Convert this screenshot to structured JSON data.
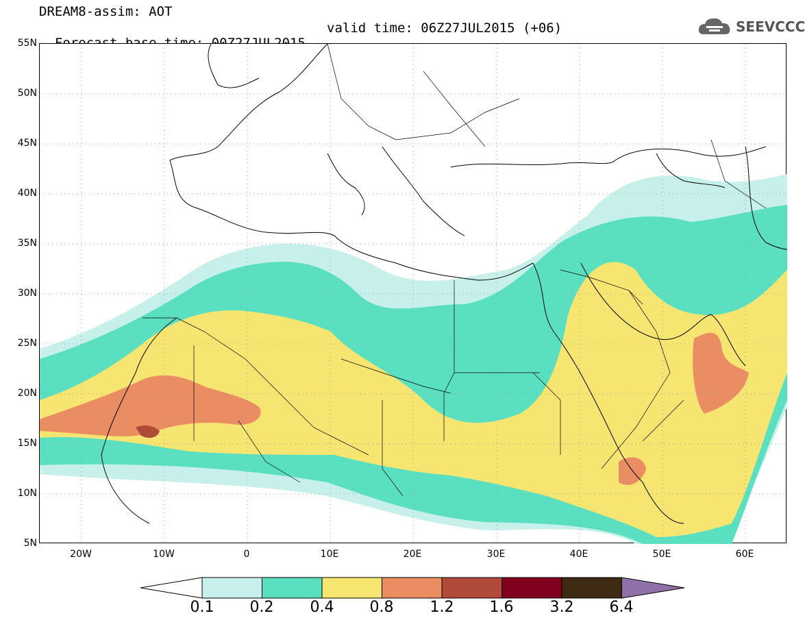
{
  "title": {
    "line1": "DREAM8-assim: AOT",
    "line2": "Forecast base time: 00Z27JUL2015",
    "valid": "valid time: 06Z27JUL2015 (+06)"
  },
  "logo": {
    "text": "SEEVCCC",
    "color": "#555555"
  },
  "map": {
    "lon_range": [
      -25,
      65
    ],
    "lat_range": [
      5,
      55
    ],
    "lat_labels": [
      "55N",
      "50N",
      "45N",
      "40N",
      "35N",
      "30N",
      "25N",
      "20N",
      "15N",
      "10N",
      "5N"
    ],
    "lon_labels": [
      "20W",
      "10W",
      "0",
      "10E",
      "20E",
      "30E",
      "40E",
      "50E",
      "60E"
    ],
    "grid": "dotted"
  },
  "legend": {
    "levels": [
      "0.1",
      "0.2",
      "0.4",
      "0.8",
      "1.2",
      "1.6",
      "3.2",
      "6.4"
    ],
    "colors": [
      "#ffffff",
      "#c8f0ea",
      "#5ae0c0",
      "#f6e571",
      "#eb8d62",
      "#b04b3a",
      "#800020",
      "#3f2a14",
      "#9070a8"
    ]
  }
}
